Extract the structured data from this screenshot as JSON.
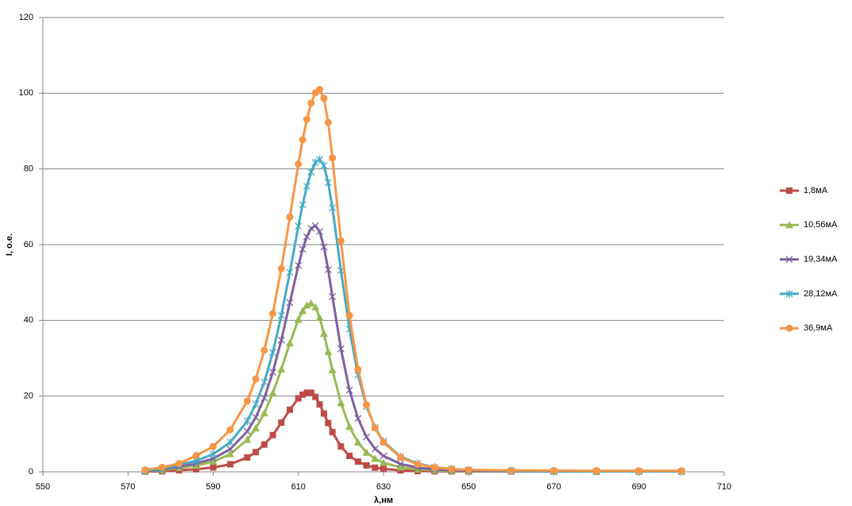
{
  "chart_data": {
    "type": "scatter",
    "x_label": "λ,нм",
    "y_label": "I, o.e.",
    "x": [
      574,
      578,
      582,
      586,
      590,
      594,
      598,
      600,
      602,
      604,
      606,
      608,
      610,
      611,
      612,
      613,
      614,
      615,
      616,
      617,
      618,
      620,
      622,
      624,
      626,
      628,
      630,
      634,
      638,
      642,
      646,
      650,
      660,
      670,
      680,
      690,
      700
    ],
    "series": [
      {
        "name": "1,8мА",
        "color": "#be4b48",
        "marker": "square",
        "values": [
          0.05,
          0.15,
          0.43,
          0.68,
          1.15,
          2.0,
          3.8,
          5.2,
          7.2,
          9.7,
          13.0,
          16.4,
          19.4,
          20.4,
          20.9,
          20.9,
          19.8,
          17.8,
          15.4,
          12.9,
          10.5,
          6.7,
          4.2,
          2.7,
          1.7,
          1.1,
          0.78,
          0.39,
          0.21,
          0.15,
          0.12,
          0.1,
          0.1,
          0.1,
          0.1,
          0.1,
          0.1
        ]
      },
      {
        "name": "10,56мА",
        "color": "#98b954",
        "marker": "triangle",
        "values": [
          0.15,
          0.4,
          1.05,
          1.66,
          2.7,
          4.7,
          8.5,
          11.5,
          15.5,
          20.8,
          27.1,
          34.0,
          40.2,
          42.5,
          44.0,
          44.5,
          43.5,
          40.7,
          36.5,
          31.7,
          26.9,
          18.2,
          11.9,
          7.8,
          5.1,
          3.5,
          2.4,
          1.2,
          0.66,
          0.39,
          0.24,
          0.16,
          0.1,
          0.1,
          0.1,
          0.1,
          0.1
        ]
      },
      {
        "name": "19,34мА",
        "color": "#7d60a0",
        "marker": "x",
        "values": [
          0.2,
          0.6,
          1.38,
          2.2,
          3.5,
          6.0,
          10.7,
          14.4,
          19.5,
          26.3,
          34.8,
          44.7,
          54.5,
          58.8,
          62.1,
          64.3,
          65,
          63.5,
          59.4,
          53.4,
          46.3,
          32.5,
          21.6,
          14.1,
          9.2,
          6.1,
          4.2,
          2.1,
          1.1,
          0.65,
          0.4,
          0.27,
          0.15,
          0.1,
          0.1,
          0.1,
          0.1
        ]
      },
      {
        "name": "28,12мА",
        "color": "#46aac5",
        "marker": "star",
        "values": [
          0.3,
          0.8,
          1.9,
          2.9,
          4.7,
          7.8,
          13.4,
          17.9,
          23.7,
          31.5,
          41.3,
          52.7,
          64.9,
          70.5,
          75.4,
          79.2,
          81.7,
          82.5,
          80.9,
          76.4,
          69.7,
          53.2,
          37.7,
          25.6,
          17.3,
          11.7,
          8.0,
          4.0,
          2.2,
          1.2,
          0.76,
          0.49,
          0.25,
          0.15,
          0.1,
          0.1,
          0.1
        ]
      },
      {
        "name": "36,9мА",
        "color": "#f79646",
        "marker": "circle",
        "values": [
          0.5,
          1.2,
          2.2,
          4.3,
          6.7,
          11.1,
          18.7,
          24.5,
          32.1,
          41.8,
          53.7,
          67.3,
          81.3,
          87.7,
          93.1,
          97.4,
          100.1,
          101,
          98.7,
          92.3,
          82.9,
          61.0,
          41.3,
          27.1,
          17.7,
          11.6,
          7.8,
          3.8,
          2.0,
          1.15,
          0.7,
          0.5,
          0.4,
          0.35,
          0.3,
          0.3,
          0.3
        ]
      }
    ],
    "xlim": [
      550,
      710
    ],
    "xticks": [
      550,
      570,
      590,
      610,
      630,
      650,
      670,
      690,
      710
    ],
    "ylim": [
      0,
      120
    ],
    "yticks": [
      0,
      20,
      40,
      60,
      80,
      100,
      120
    ],
    "grid": true,
    "legend": "right"
  }
}
